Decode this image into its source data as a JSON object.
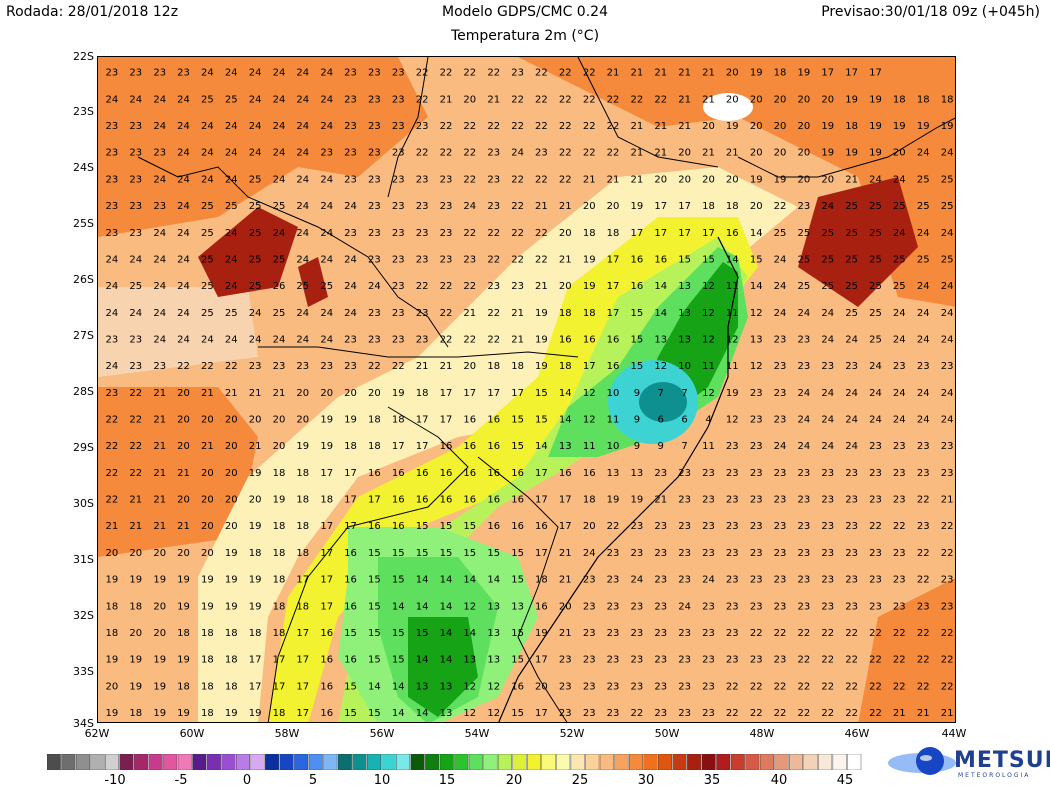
{
  "header": {
    "run": "Rodada: 28/01/2018 12z",
    "model": "Modelo GDPS/CMC 0.24",
    "variable": "Temperatura 2m (°C)",
    "forecast": "Previsao:30/01/18 09z (+045h)"
  },
  "map": {
    "lat_labels": [
      "22S",
      "23S",
      "24S",
      "25S",
      "26S",
      "27S",
      "28S",
      "29S",
      "30S",
      "31S",
      "32S",
      "33S",
      "34S"
    ],
    "lon_labels": [
      "62W",
      "60W",
      "58W",
      "56W",
      "54W",
      "52W",
      "50W",
      "48W",
      "46W",
      "44W"
    ],
    "grid_values": [
      "23 23 23 23 24 24 24 24 24 24 23 23 23 22 22 22 22 23 22 22 22 21 21 21 21 21 20 19 18 19 17 17 17",
      "24 24 24 24 25 25 24 24 24 24 23 23 23 22 21 20 21 22 22 22 22 22 22 22 21 21 20 20 20 20 20 19 19 18 18 18",
      "23 23 24 24 24 24 24 24 24 24 23 23 23 23 22 22 22 22 22 22 22 22 21 21 21 20 19 20 20 20 19 18 19 19 19 19",
      "23 23 23 24 24 24 24 24 24 23 23 23 23 22 22 22 23 24 23 22 22 22 21 21 20 21 21 20 20 20 19 19 19 20 24 24",
      "23 23 24 24 24 24 25 24 24 24 23 23 23 23 23 22 23 22 22 22 21 21 21 20 20 20 20 19 19 20 20 21 24 24 25 25",
      "23 23 23 24 25 25 25 25 24 24 24 23 23 23 23 24 23 22 21 21 20 20 19 17 17 18 18 20 22 23 24 25 25 25 25 25",
      "23 23 24 24 25 24 25 24 24 24 23 23 23 23 23 22 22 22 22 20 18 18 17 17 17 17 16 14 25 25 25 25 25 24 24 24",
      "24 24 24 24 25 24 25 25 24 24 24 23 23 23 23 23 22 22 22 21 19 17 16 16 15 15 14 15 24 25 25 25 25 25 25 25",
      "24 25 24 24 25 24 25 26 25 25 24 24 23 22 22 22 23 23 21 20 19 17 16 14 13 12 11 14 24 25 25 25 25 25 24 24",
      "24 24 24 24 25 25 24 25 24 24 24 23 23 23 22 21 22 21 19 18 18 17 15 14 13 12 11 12 24 24 24 25 25 24 24 24",
      "23 23 24 24 24 24 24 24 24 24 23 23 23 23 22 22 22 21 19 16 16 16 15 13 13 12 12 13 23 23 24 24 25 24 24 24",
      "24 23 23 22 22 22 23 23 23 23 23 22 22 21 21 20 18 18 19 18 17 16 15 12 10 11 11 12 23 23 23 23 24 23 23 23",
      "23 22 21 20 21 21 21 21 20 20 20 20 19 18 17 17 17 17 15 14 12 10 9 7 7 12 19 23 23 24 24 24 24 24 24 24",
      "22 22 21 20 20 20 20 20 20 19 19 18 18 17 17 16 16 15 15 14 12 11 9 6 6 4 12 23 23 24 24 24 24 24 24 24",
      "22 22 21 20 21 20 21 20 19 19 18 18 17 17 16 16 16 15 14 13 11 10 9 9 7 11 23 23 24 24 24 24 23 23 23 23",
      "22 22 21 21 20 20 19 18 18 17 17 16 16 16 16 16 16 16 17 16 16 13 13 23 23 23 23 23 23 23 23 23 23 23 23 23",
      "22 21 21 20 20 20 20 19 18 18 17 17 16 16 16 16 16 16 17 17 18 19 19 21 23 23 23 23 23 23 23 23 23 23 22 21",
      "21 21 21 21 20 20 19 18 18 17 17 16 16 15 15 15 16 16 16 17 20 22 23 23 23 23 23 23 23 23 23 23 22 22 23 22",
      "20 20 20 20 20 19 18 18 18 17 16 15 15 15 15 15 15 15 17 21 24 23 23 23 23 23 23 23 23 23 23 23 23 23 22 22",
      "19 19 19 19 19 19 19 18 17 17 16 15 15 14 14 14 14 15 18 21 23 23 24 23 23 24 23 23 23 23 23 23 23 23 22 23",
      "18 18 20 19 19 19 19 18 18 17 16 15 14 14 14 12 13 13 16 20 23 23 23 23 24 23 23 23 23 23 23 23 23 23 23 23",
      "18 20 20 18 18 18 18 18 17 16 15 15 15 15 14 14 13 15 19 21 23 23 23 23 23 23 23 22 22 22 22 22 22 22 22 22",
      "19 19 19 19 18 18 17 17 17 16 16 15 15 14 14 13 13 15 17 23 23 23 23 23 23 23 23 23 23 22 22 22 22 22 22 22",
      "20 19 19 18 18 18 17 17 17 16 15 14 14 13 13 12 12 16 20 23 23 23 23 23 23 23 22 22 22 22 22 22 22 22 22 22",
      "19 18 19 19 18 19 19 18 17 16 15 15 14 14 13 12 12 15 17 23 23 23 22 23 23 23 22 22 22 22 22 22 22 21 21 21"
    ]
  },
  "colorbar": {
    "labels": [
      "-10",
      "-5",
      "0",
      "5",
      "10",
      "15",
      "20",
      "25",
      "30",
      "35",
      "40",
      "45"
    ],
    "colors": [
      "#4d4d4d",
      "#6e6e6e",
      "#8f8f8f",
      "#b0b0b0",
      "#d0d0d0",
      "#7a1f4f",
      "#a6266a",
      "#c93a8c",
      "#e0569f",
      "#f07ab8",
      "#5b1a8c",
      "#7a2fb3",
      "#9a4fd0",
      "#b97be6",
      "#d6a9f2",
      "#0b2f9e",
      "#1746c4",
      "#2a66e0",
      "#4f8ff0",
      "#7fb6f7",
      "#0a6f6f",
      "#0f9090",
      "#18b2b2",
      "#3ed3d3",
      "#7ae8e8",
      "#0a5c0a",
      "#0f7f0f",
      "#16a316",
      "#2cc42c",
      "#5ee05e",
      "#8ff07a",
      "#b8f25a",
      "#dcef3a",
      "#f2f230",
      "#fafa78",
      "#fbfbb0",
      "#fde7b0",
      "#fbd29a",
      "#f9bb80",
      "#f7a25e",
      "#f58a3c",
      "#f0701e",
      "#e0560f",
      "#c83a10",
      "#a82010",
      "#8a0f10",
      "#b21c1c",
      "#c93c2e",
      "#d65a45",
      "#e07a5e",
      "#e6997a",
      "#eeb89a",
      "#f3d3b8",
      "#f8e8d8",
      "#fcf4ec",
      "#ffffff"
    ],
    "accent": "#1f3f8f"
  },
  "branding": {
    "name": "METSUL",
    "subtitle": "METEOROLOGIA"
  }
}
